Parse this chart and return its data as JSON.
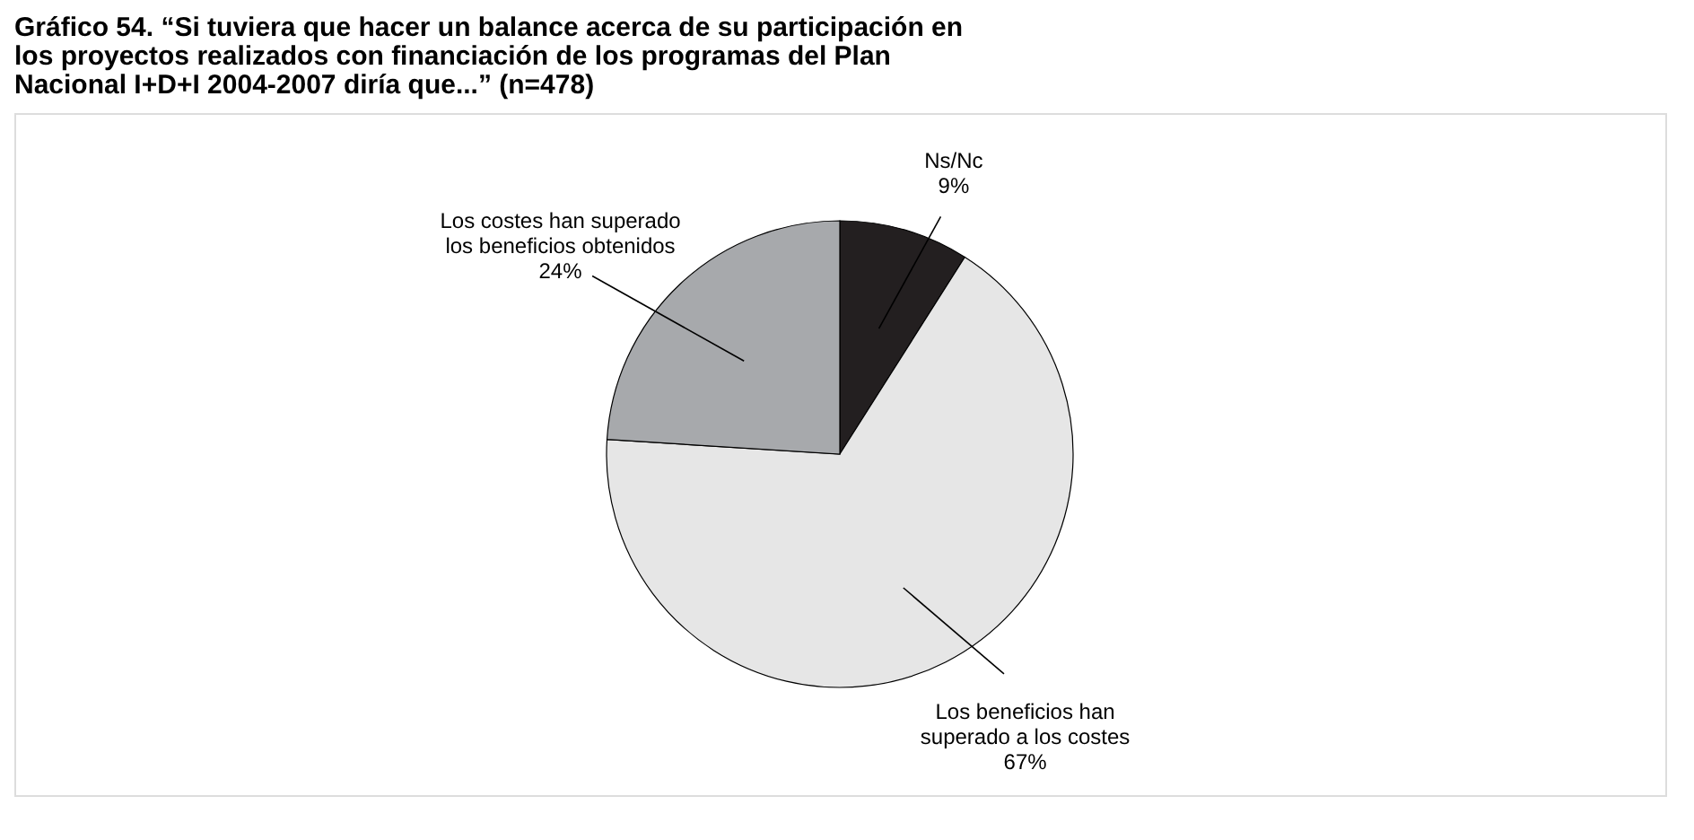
{
  "chart_data": {
    "type": "pie",
    "title": "Gráfico 54. “Si tuviera que hacer un balance acerca de su participación en los proyectos realizados con financiación de los programas del Plan Nacional I+D+I 2004-2007 diría que...” (n=478)",
    "categories": [
      "Ns/Nc",
      "Los beneficios han superado a los costes",
      "Los costes han superado los beneficios obtenidos"
    ],
    "values": [
      9,
      67,
      24
    ],
    "value_labels": [
      "9%",
      "67%",
      "24%"
    ],
    "colors": [
      "#231f20",
      "#e6e6e6",
      "#a7a9ac"
    ]
  }
}
